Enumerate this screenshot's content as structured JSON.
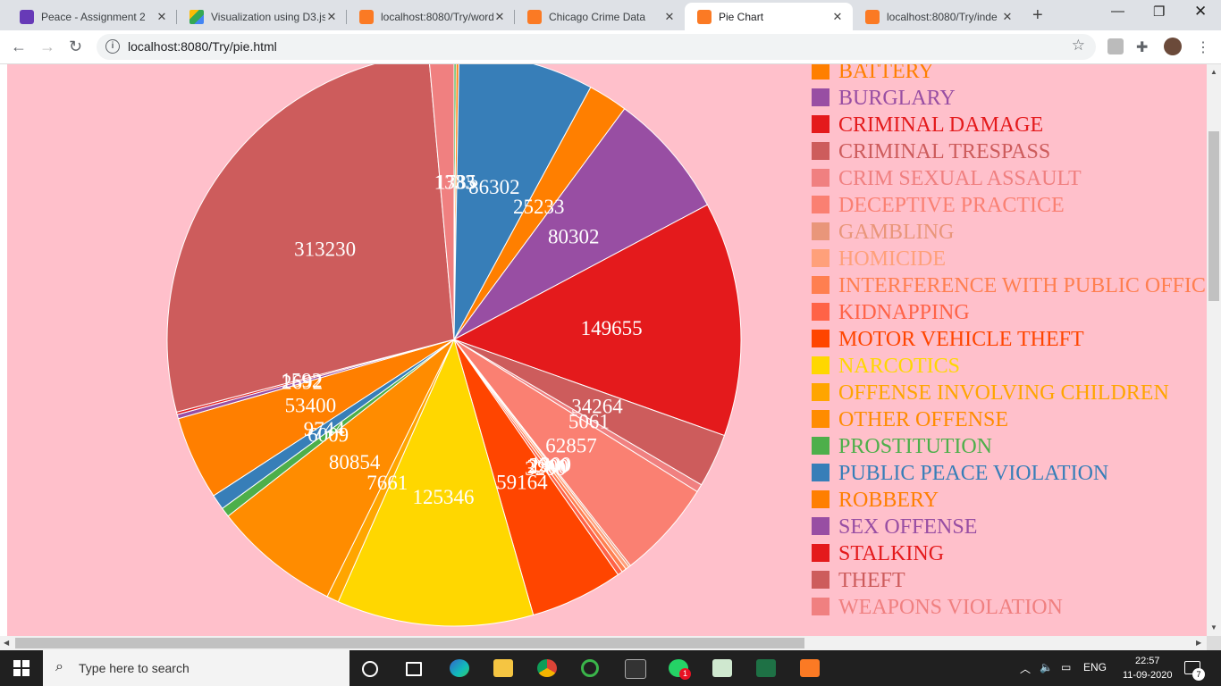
{
  "browser": {
    "tabs": [
      {
        "title": "Peace - Assignment 2",
        "icon": "sheets-icon",
        "active": false
      },
      {
        "title": "Visualization using D3.js",
        "icon": "drive-icon",
        "active": false
      },
      {
        "title": "localhost:8080/Try/word",
        "icon": "xampp-icon",
        "active": false
      },
      {
        "title": "Chicago Crime Data",
        "icon": "xampp-icon",
        "active": false
      },
      {
        "title": "Pie Chart",
        "icon": "xampp-icon",
        "active": true
      },
      {
        "title": "localhost:8080/Try/inde",
        "icon": "xampp-icon",
        "active": false
      }
    ],
    "new_tab_symbol": "+",
    "url": "localhost:8080/Try/pie.html",
    "info_symbol": "i"
  },
  "chart_data": {
    "type": "pie",
    "title": "",
    "categories": [
      "BATTERY",
      "BURGLARY",
      "CRIMINAL DAMAGE",
      "CRIMINAL TRESPASS",
      "CRIM SEXUAL ASSAULT",
      "DECEPTIVE PRACTICE",
      "GAMBLING",
      "HOMICIDE",
      "INTERFERENCE WITH PUBLIC OFFICER",
      "KIDNAPPING",
      "MOTOR VEHICLE THEFT",
      "NARCOTICS",
      "OFFENSE INVOLVING CHILDREN",
      "OTHER OFFENSE",
      "PROSTITUTION",
      "PUBLIC PEACE VIOLATION",
      "ROBBERY",
      "SEX OFFENSE",
      "STALKING",
      "THEFT",
      "WEAPONS VIOLATION"
    ],
    "slices": [
      {
        "value": 1333,
        "color": "#2ca02c",
        "label": "1333"
      },
      {
        "value": 1785,
        "color": "#ff7f0e",
        "label": "1785"
      },
      {
        "value": 86302,
        "color": "#377eb8",
        "label": "86302"
      },
      {
        "value": 25233,
        "color": "#ff7f00",
        "label": "25233"
      },
      {
        "value": 80302,
        "color": "#984ea3",
        "label": "80302"
      },
      {
        "value": 149655,
        "color": "#e41a1c",
        "label": "149655"
      },
      {
        "value": 34264,
        "color": "#cd5c5c",
        "label": "34264"
      },
      {
        "value": 5061,
        "color": "#f08080",
        "label": "5061"
      },
      {
        "value": 62857,
        "color": "#fa8072",
        "label": "62857"
      },
      {
        "value": 1300,
        "color": "#e9967a",
        "label": "1300"
      },
      {
        "value": 2300,
        "color": "#ffa07a",
        "label": "2300"
      },
      {
        "value": 2900,
        "color": "#ff7f50",
        "label": "2900"
      },
      {
        "value": 3200,
        "color": "#ff6347",
        "label": "3200"
      },
      {
        "value": 59164,
        "color": "#ff4500",
        "label": "59164"
      },
      {
        "value": 125346,
        "color": "#ffd700",
        "label": "125346"
      },
      {
        "value": 7661,
        "color": "#ffa500",
        "label": "7661"
      },
      {
        "value": 80854,
        "color": "#ff8c00",
        "label": "80854"
      },
      {
        "value": 6009,
        "color": "#4daf4a",
        "label": "6009"
      },
      {
        "value": 9744,
        "color": "#377eb8",
        "label": "9744"
      },
      {
        "value": 53400,
        "color": "#ff7f00",
        "label": "53400"
      },
      {
        "value": 2692,
        "color": "#984ea3",
        "label": "2692"
      },
      {
        "value": 1592,
        "color": "#e41a1c",
        "label": "1592"
      },
      {
        "value": 313230,
        "color": "#cd5c5c",
        "label": "313230"
      },
      {
        "value": 16000,
        "color": "#f08080",
        "label": ""
      }
    ],
    "legend": [
      {
        "label": "BATTERY",
        "color": "#ff7f00"
      },
      {
        "label": "BURGLARY",
        "color": "#984ea3"
      },
      {
        "label": "CRIMINAL DAMAGE",
        "color": "#e41a1c"
      },
      {
        "label": "CRIMINAL TRESPASS",
        "color": "#cd5c5c"
      },
      {
        "label": "CRIM SEXUAL ASSAULT",
        "color": "#f08080"
      },
      {
        "label": "DECEPTIVE PRACTICE",
        "color": "#fa8072"
      },
      {
        "label": "GAMBLING",
        "color": "#e9967a"
      },
      {
        "label": "HOMICIDE",
        "color": "#ffa07a"
      },
      {
        "label": "INTERFERENCE WITH PUBLIC OFFICER",
        "color": "#ff7f50"
      },
      {
        "label": "KIDNAPPING",
        "color": "#ff6347"
      },
      {
        "label": "MOTOR VEHICLE THEFT",
        "color": "#ff4500"
      },
      {
        "label": "NARCOTICS",
        "color": "#ffd700"
      },
      {
        "label": "OFFENSE INVOLVING CHILDREN",
        "color": "#ffa500"
      },
      {
        "label": "OTHER OFFENSE",
        "color": "#ff8c00"
      },
      {
        "label": "PROSTITUTION",
        "color": "#4daf4a"
      },
      {
        "label": "PUBLIC PEACE VIOLATION",
        "color": "#377eb8"
      },
      {
        "label": "ROBBERY",
        "color": "#ff7f00"
      },
      {
        "label": "SEX OFFENSE",
        "color": "#984ea3"
      },
      {
        "label": "STALKING",
        "color": "#e41a1c"
      },
      {
        "label": "THEFT",
        "color": "#cd5c5c"
      },
      {
        "label": "WEAPONS VIOLATION",
        "color": "#f08080"
      }
    ],
    "background_color": "#ffc0cb",
    "legend_position": "right"
  },
  "taskbar": {
    "search_placeholder": "Type here to search",
    "language": "ENG",
    "time": "22:57",
    "date": "11-09-2020",
    "notification_count": "7",
    "whatsapp_badge": "1"
  }
}
